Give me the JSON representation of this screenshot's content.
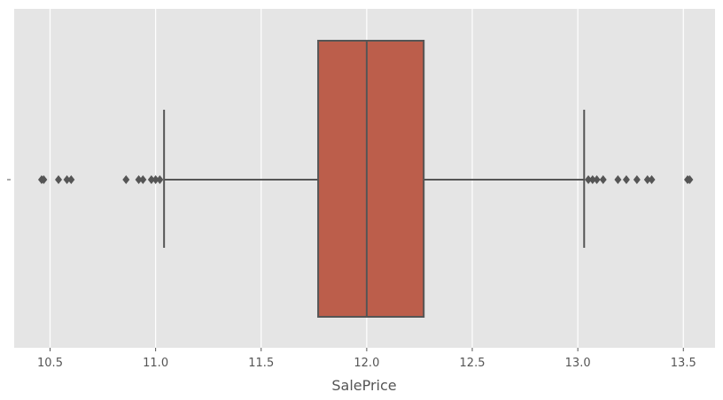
{
  "chart_data": {
    "type": "boxplot",
    "orientation": "horizontal",
    "xlabel": "SalePrice",
    "ylabel": "",
    "xlim": [
      10.33,
      13.65
    ],
    "x_ticks": [
      10.5,
      11.0,
      11.5,
      12.0,
      12.5,
      13.0,
      13.5
    ],
    "x_tick_labels": [
      "10.5",
      "11.0",
      "11.5",
      "12.0",
      "12.5",
      "13.0",
      "13.5"
    ],
    "grid": true,
    "colors": {
      "background": "#e5e5e5",
      "grid": "#ffffff",
      "box_fill": "#bc5e4b",
      "line": "#555555"
    },
    "box": {
      "whisker_low": 11.04,
      "q1": 11.77,
      "median": 12.0,
      "q3": 12.27,
      "whisker_high": 13.03
    },
    "outliers": [
      10.46,
      10.47,
      10.54,
      10.58,
      10.6,
      10.86,
      10.92,
      10.94,
      10.98,
      11.0,
      11.02,
      13.05,
      13.07,
      13.09,
      13.12,
      13.19,
      13.23,
      13.28,
      13.33,
      13.35,
      13.52,
      13.53
    ]
  }
}
